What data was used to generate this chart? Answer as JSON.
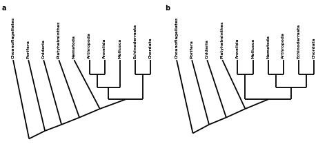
{
  "figsize": [
    4.74,
    2.12
  ],
  "dpi": 100,
  "background": "#ffffff",
  "label_fontsize": 4.2,
  "label_fontweight": "bold",
  "lw": 1.3,
  "trees": [
    {
      "label": "a",
      "taxa": [
        "Choanoflagellates",
        "Porifera",
        "Cnidaria",
        "Platyhelminthes",
        "Nematoda",
        "Arthropoda",
        "Annelida",
        "Mollusca",
        "Echinodermata",
        "Chordata"
      ],
      "topology": "a"
    },
    {
      "label": "b",
      "taxa": [
        "Choanoflagellates",
        "Porifera",
        "Cnidaria",
        "Platyhelminthes",
        "Annelida",
        "Mollusca",
        "Nematoda",
        "Arthropoda",
        "Echinodermata",
        "Chordata"
      ],
      "topology": "b"
    }
  ]
}
